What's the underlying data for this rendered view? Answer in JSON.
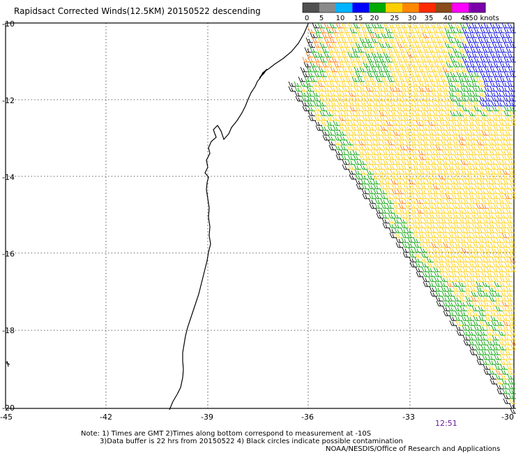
{
  "title": "Rapidsact Corrected Winds(12.5KM) 20150522 descending",
  "legend": {
    "labels": [
      "0",
      "5",
      "10",
      "15",
      "20",
      "25",
      "30",
      "35",
      "40",
      "45",
      ">50 knots"
    ],
    "colors": [
      "#505050",
      "#8a8a8a",
      "#00b4ff",
      "#0000ff",
      "#00aa00",
      "#ffd000",
      "#ff8800",
      "#ff2a00",
      "#8a4a1a",
      "#ff00ff",
      "#7a00aa"
    ]
  },
  "axes": {
    "lat_labels": [
      "-10",
      "-12",
      "-14",
      "-16",
      "-18",
      "-20"
    ],
    "lon_labels": [
      "-45",
      "-42",
      "-39",
      "-36",
      "-33",
      "-30"
    ]
  },
  "time_label": "12:51",
  "notes": {
    "line1": "Note: 1) Times are GMT 2)Times along bottom correspond to measurement at -10S",
    "line2": "3)Data buffer is 22 hrs from 20150522 4) Black circles indicate possible contamination"
  },
  "credit": "NOAA/NESDIS/Office of Research and Applications",
  "wind_colors": {
    "yellow": "#ffcc00",
    "green": "#00a000",
    "blue": "#0000dd",
    "orange": "#ff7700",
    "black": "#000000"
  }
}
